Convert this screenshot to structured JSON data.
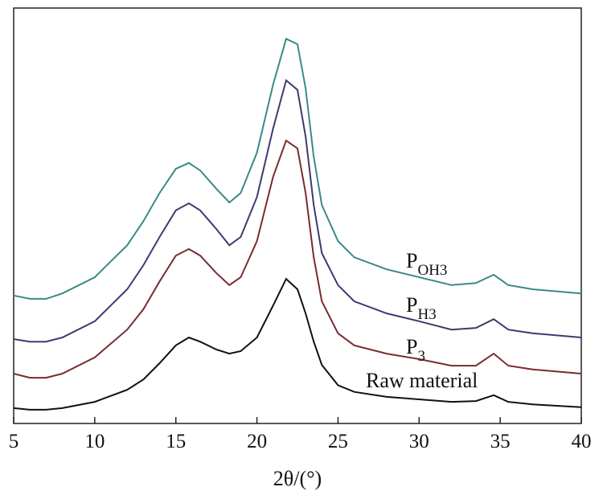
{
  "chart_data": {
    "type": "line",
    "xlabel": "2θ/(°)",
    "x": [
      5,
      6,
      7,
      8,
      10,
      12,
      13,
      14,
      15,
      15.8,
      16.5,
      17.5,
      18.3,
      19,
      20,
      21,
      21.8,
      22.5,
      23,
      23.5,
      24,
      25,
      26,
      28,
      30,
      32,
      33.5,
      34.6,
      35.5,
      37,
      40
    ],
    "xlim": [
      5,
      40
    ],
    "xticks": [
      5,
      10,
      15,
      20,
      25,
      30,
      35,
      40
    ],
    "ylim": [
      0,
      100
    ],
    "yticks": [],
    "series": [
      {
        "name": "Raw material",
        "color": "#111111",
        "values": [
          3.7,
          3.3,
          3.3,
          3.7,
          5.2,
          8.1,
          10.6,
          14.5,
          18.8,
          20.7,
          19.7,
          17.8,
          16.8,
          17.4,
          20.7,
          28.4,
          34.8,
          32.3,
          26.5,
          19.7,
          14.1,
          9.2,
          7.6,
          6.4,
          5.8,
          5.2,
          5.4,
          6.8,
          5.2,
          4.6,
          3.9
        ]
      },
      {
        "name": "P",
        "name_sub": "3",
        "color": "#7a2b2e",
        "values": [
          12.0,
          11.0,
          11.0,
          12.0,
          15.9,
          22.6,
          27.5,
          34.2,
          40.4,
          42.0,
          40.4,
          36.2,
          33.3,
          35.2,
          43.9,
          59.4,
          68.1,
          66.2,
          55.5,
          40.0,
          29.4,
          21.7,
          18.8,
          16.8,
          15.5,
          13.9,
          13.9,
          16.8,
          13.9,
          13.0,
          12.0
        ]
      },
      {
        "name": "P",
        "name_sub": "H3",
        "color": "#3f3a70",
        "values": [
          20.3,
          19.7,
          19.7,
          20.7,
          24.6,
          32.3,
          38.1,
          44.9,
          51.3,
          53.0,
          51.3,
          46.8,
          42.9,
          44.9,
          54.5,
          71.0,
          82.6,
          80.3,
          69.1,
          52.6,
          41.0,
          33.3,
          29.4,
          26.5,
          24.6,
          22.6,
          23.0,
          25.1,
          22.6,
          21.7,
          20.7
        ]
      },
      {
        "name": "P",
        "name_sub": "OH3",
        "color": "#3a8a86",
        "values": [
          30.8,
          30.0,
          30.0,
          31.3,
          35.2,
          42.9,
          48.7,
          55.5,
          61.3,
          62.7,
          60.9,
          56.5,
          53.2,
          55.5,
          65.2,
          81.6,
          92.6,
          91.3,
          80.7,
          64.2,
          52.6,
          43.9,
          40.0,
          37.1,
          35.2,
          33.3,
          33.8,
          35.8,
          33.3,
          32.3,
          31.3
        ]
      }
    ]
  }
}
